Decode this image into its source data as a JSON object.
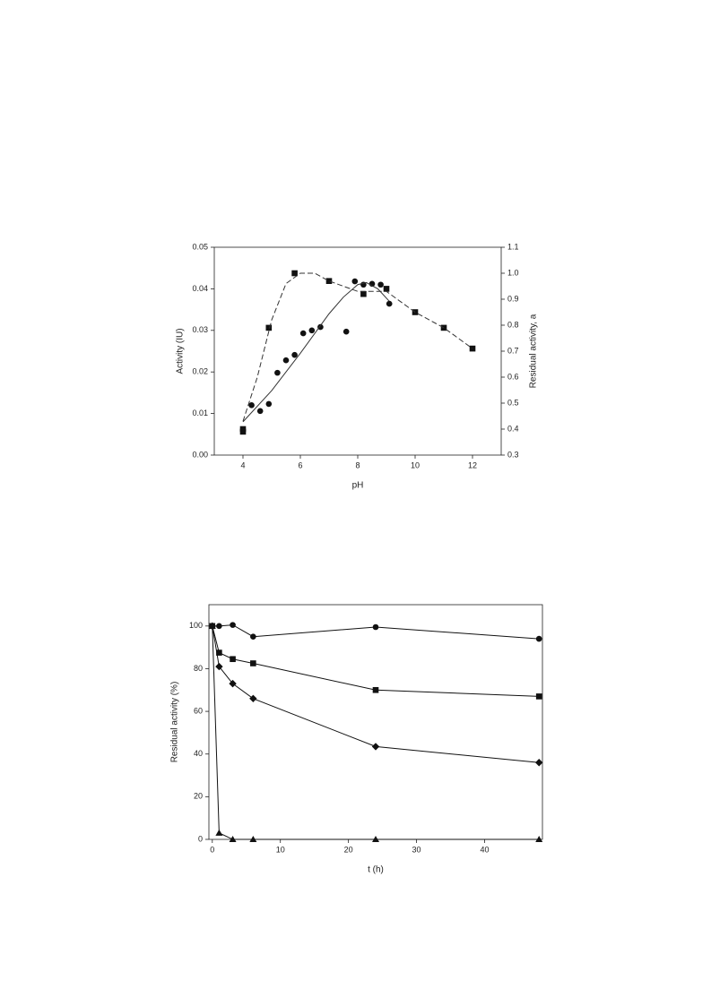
{
  "chart_data": [
    {
      "type": "scatter",
      "x_label": "pH",
      "y_label": "Activity (IU)",
      "y2_label": "Residual activity, a",
      "xlim": [
        3,
        13
      ],
      "xticks": [
        4,
        6,
        8,
        10,
        12
      ],
      "ylim": [
        0,
        0.05
      ],
      "yticks": [
        {
          "value": 0,
          "label": "0.00"
        },
        0.01,
        0.02,
        0.03,
        0.04,
        0.05
      ],
      "y2lim": [
        0.3,
        1.1
      ],
      "y2ticks": [
        0.3,
        0.4,
        0.5,
        0.6,
        0.7,
        0.8,
        0.9,
        {
          "value": 1,
          "label": "1.0"
        },
        1.1
      ],
      "series": [
        {
          "marker": "circle",
          "color": "#111111",
          "axis": "y",
          "x": [
            4,
            4.3,
            4.6,
            4.9,
            5.2,
            5.5,
            5.8,
            6.1,
            6.4,
            6.7,
            7.6,
            7.9,
            8.2,
            8.5,
            8.8,
            9.1
          ],
          "values": [
            0.006,
            0.012,
            0.0106,
            0.0123,
            0.0198,
            0.0228,
            0.0241,
            0.0293,
            0.03,
            0.0308,
            0.0297,
            0.0418,
            0.041,
            0.0412,
            0.041,
            0.0364
          ]
        },
        {
          "marker": "square",
          "color": "#111111",
          "axis": "y2",
          "x": [
            4,
            4,
            4.9,
            5.8,
            7,
            8.2,
            9,
            10,
            11,
            12
          ],
          "values": [
            0.4,
            0.39,
            0.79,
            1.0,
            0.97,
            0.92,
            0.94,
            0.85,
            0.79,
            0.71
          ]
        },
        {
          "line": "solid",
          "color": "#333333",
          "axis": "y",
          "x": [
            4,
            5,
            6,
            7,
            7.5,
            8,
            8.3,
            8.7,
            9.1
          ],
          "values": [
            0.008,
            0.0155,
            0.0245,
            0.034,
            0.038,
            0.041,
            0.0415,
            0.04,
            0.037
          ]
        },
        {
          "line": "dashed",
          "color": "#333333",
          "axis": "y2",
          "x": [
            4,
            4.5,
            5,
            5.5,
            6,
            6.5,
            7,
            8,
            8.5,
            9,
            10,
            11,
            12
          ],
          "values": [
            0.43,
            0.6,
            0.82,
            0.96,
            1.0,
            1.0,
            0.97,
            0.93,
            0.93,
            0.93,
            0.85,
            0.79,
            0.71
          ]
        }
      ]
    },
    {
      "type": "line",
      "x_label": "t (h)",
      "y_label": "Residual activity (%)",
      "xlim": [
        -0.5,
        48.5
      ],
      "xticks": [
        0,
        10,
        20,
        30,
        40
      ],
      "ylim": [
        0,
        110
      ],
      "yticks": [
        0,
        20,
        40,
        60,
        80,
        100
      ],
      "x": [
        0,
        1,
        3,
        6,
        24,
        48
      ],
      "series": [
        {
          "marker": "circle",
          "color": "#111111",
          "values": [
            100,
            100,
            100.5,
            95,
            99.5,
            94
          ]
        },
        {
          "marker": "square",
          "color": "#111111",
          "values": [
            100,
            87.5,
            84.5,
            82.5,
            70,
            67
          ]
        },
        {
          "marker": "diamond",
          "color": "#111111",
          "values": [
            100,
            81,
            73,
            66,
            43.5,
            36
          ]
        },
        {
          "marker": "triangle",
          "color": "#111111",
          "values": [
            100,
            3,
            0,
            0,
            0,
            0
          ]
        }
      ]
    }
  ]
}
